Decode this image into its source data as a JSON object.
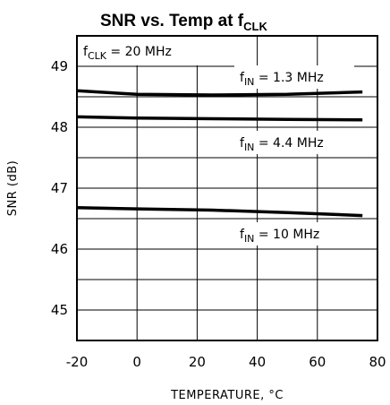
{
  "chart_data": {
    "type": "line",
    "title": {
      "main": "SNR vs. Temp at f",
      "sub": "CLK"
    },
    "xlabel": "TEMPERATURE, °C",
    "ylabel": "SNR (dB)",
    "xlim": [
      -20,
      80
    ],
    "ylim": [
      44.5,
      49.5
    ],
    "grid": true,
    "x_ticks": [
      -20,
      0,
      20,
      40,
      60,
      80
    ],
    "x_tick_labels": [
      "-20",
      "0",
      "20",
      "40",
      "60",
      "80"
    ],
    "y_ticks": [
      45,
      46,
      47,
      48,
      49
    ],
    "y_tick_labels": [
      "45",
      "46",
      "47",
      "48",
      "49"
    ],
    "condition_label": {
      "prefix": "f",
      "sub": "CLK",
      "suffix": " = 20 MHz"
    },
    "series": [
      {
        "name": "fIN = 1.3 MHz",
        "label_prefix": "f",
        "label_sub": "IN",
        "label_suffix": " =  1.3 MHz",
        "x": [
          -25,
          0,
          25,
          50,
          75
        ],
        "y": [
          48.6,
          48.54,
          48.53,
          48.54,
          48.58
        ]
      },
      {
        "name": "fIN = 4.4 MHz",
        "label_prefix": "f",
        "label_sub": "IN",
        "label_suffix": " =  4.4 MHz",
        "x": [
          -25,
          0,
          25,
          50,
          75
        ],
        "y": [
          48.17,
          48.15,
          48.14,
          48.13,
          48.12
        ]
      },
      {
        "name": "fIN = 10 MHz",
        "label_prefix": "f",
        "label_sub": "IN",
        "label_suffix": " =  10 MHz",
        "x": [
          -25,
          0,
          25,
          50,
          75
        ],
        "y": [
          46.68,
          46.66,
          46.64,
          46.6,
          46.55
        ]
      }
    ]
  }
}
